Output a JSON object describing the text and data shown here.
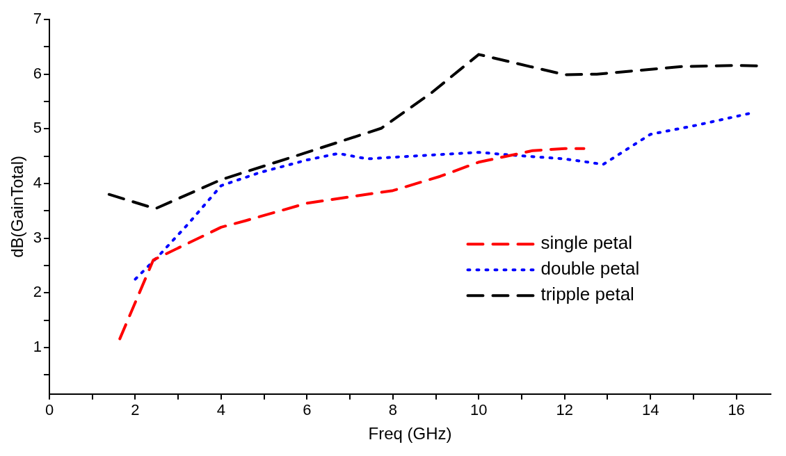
{
  "chart_data": {
    "type": "line",
    "xlabel": "Freq (GHz)",
    "ylabel": "dB(GainTotal)",
    "xlim": [
      0,
      16.8
    ],
    "ylim": [
      0.15,
      7
    ],
    "xticks": [
      0,
      {
        "value": 1,
        "label": null
      },
      2,
      {
        "value": 3,
        "label": null
      },
      4,
      {
        "value": 5,
        "label": null
      },
      6,
      {
        "value": 7,
        "label": null
      },
      8,
      {
        "value": 9,
        "label": null
      },
      10,
      {
        "value": 11,
        "label": null
      },
      12,
      {
        "value": 13,
        "label": null
      },
      14,
      {
        "value": 15,
        "label": null
      },
      16
    ],
    "yticks": [
      {
        "value": 0.5,
        "label": null
      },
      1,
      {
        "value": 1.5,
        "label": null
      },
      2,
      {
        "value": 2.5,
        "label": null
      },
      3,
      {
        "value": 3.5,
        "label": null
      },
      4,
      {
        "value": 4.5,
        "label": null
      },
      5,
      {
        "value": 5.5,
        "label": null
      },
      6,
      {
        "value": 6.5,
        "label": null
      },
      7
    ],
    "grid": false,
    "legend": "right",
    "marker": "none",
    "series": [
      {
        "name": "single petal",
        "color": "#ff0000",
        "line_style": "dashed",
        "x": [
          1.64,
          2.42,
          4,
          4.57,
          6,
          8,
          9.1,
          10,
          11.25,
          12,
          12.45
        ],
        "values": [
          1.16,
          2.6,
          3.2,
          3.32,
          3.64,
          3.87,
          4.13,
          4.39,
          4.6,
          4.64,
          4.64
        ]
      },
      {
        "name": "double petal",
        "color": "#0000ff",
        "line_style": "dotted",
        "x": [
          2,
          2.56,
          3.22,
          4,
          4.9,
          6,
          6.73,
          7.4,
          8,
          10,
          10.75,
          12,
          12.9,
          14,
          15.1,
          16.3
        ],
        "values": [
          2.25,
          2.69,
          3.25,
          3.96,
          4.2,
          4.43,
          4.55,
          4.45,
          4.48,
          4.57,
          4.52,
          4.45,
          4.35,
          4.9,
          5.07,
          5.28
        ]
      },
      {
        "name": "tripple petal",
        "color": "#000000",
        "line_style": "dashed",
        "x": [
          1.39,
          2.47,
          4,
          6,
          7.73,
          8.9,
          10,
          12,
          12.75,
          14.76,
          16,
          16.57
        ],
        "values": [
          3.8,
          3.54,
          4.07,
          4.57,
          5.01,
          5.66,
          6.36,
          5.99,
          6.0,
          6.14,
          6.16,
          6.15
        ]
      }
    ]
  }
}
